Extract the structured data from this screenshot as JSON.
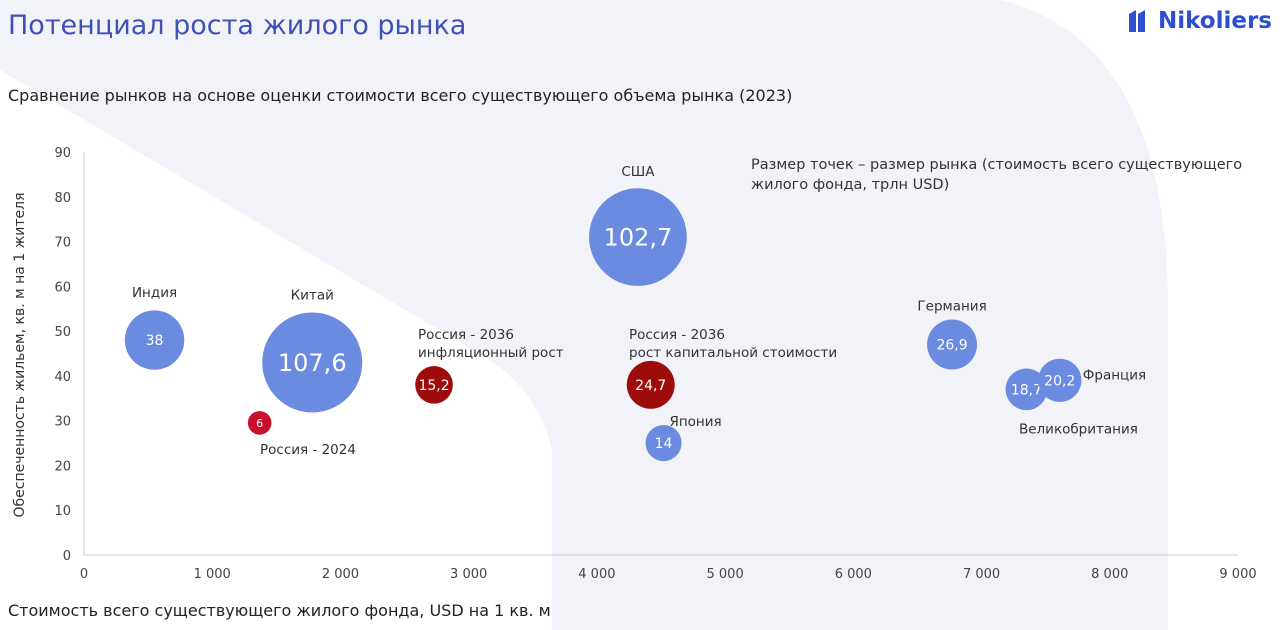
{
  "title": "Потенциал роста жилого рынка",
  "logo": {
    "text": "Nikoliers"
  },
  "subtitle": "Сравнение рынков на основе оценки стоимости всего существующего объема рынка (2023)",
  "note": "Размер точек – размер рынка (стоимость всего существующего жилого фонда, трлн USD)",
  "colors": {
    "blue": "#6B8BE0",
    "red": "#9E0B0B",
    "bright_red": "#C8102E",
    "title": "#3F51B5"
  },
  "chart_data": {
    "type": "scatter",
    "xlabel": "Стоимость всего существующего жилого фонда, USD на 1 кв. м",
    "ylabel": "Обеспеченность жильем, кв. м на 1 жителя",
    "xlim": [
      0,
      9000
    ],
    "ylim": [
      0,
      90
    ],
    "x_ticks": [
      "0",
      "1 000",
      "2 000",
      "3 000",
      "4 000",
      "5 000",
      "6 000",
      "7 000",
      "8 000",
      "9 000"
    ],
    "y_ticks": [
      "0",
      "10",
      "20",
      "30",
      "40",
      "50",
      "60",
      "70",
      "80",
      "90"
    ],
    "grid": false,
    "points": [
      {
        "label": "Индия",
        "x": 550,
        "y": 48,
        "size": 38,
        "size_label": "38",
        "color": "#6B8BE0"
      },
      {
        "label": "Китай",
        "x": 1780,
        "y": 43,
        "size": 107.6,
        "size_label": "107,6",
        "color": "#6B8BE0"
      },
      {
        "label": "Россия - 2024",
        "x": 1370,
        "y": 29.5,
        "size": 6,
        "size_label": "6",
        "color": "#C8102E"
      },
      {
        "label_lines": [
          "Россия - 2036",
          "инфляционный рост"
        ],
        "x": 2730,
        "y": 38,
        "size": 15.2,
        "size_label": "15,2",
        "color": "#9E0B0B"
      },
      {
        "label": "США",
        "x": 4320,
        "y": 71,
        "size": 102.7,
        "size_label": "102,7",
        "color": "#6B8BE0"
      },
      {
        "label_lines": [
          "Россия - 2036",
          "рост капитальной стоимости"
        ],
        "x": 4420,
        "y": 38,
        "size": 24.7,
        "size_label": "24,7",
        "color": "#9E0B0B"
      },
      {
        "label": "Япония",
        "x": 4520,
        "y": 25,
        "size": 14,
        "size_label": "14",
        "color": "#6B8BE0"
      },
      {
        "label": "Германия",
        "x": 6770,
        "y": 47,
        "size": 26.9,
        "size_label": "26,9",
        "color": "#6B8BE0"
      },
      {
        "label": "Великобритания",
        "x": 7350,
        "y": 37,
        "size": 18.7,
        "size_label": "18,7",
        "color": "#6B8BE0"
      },
      {
        "label": "Франция",
        "x": 7610,
        "y": 39,
        "size": 20.2,
        "size_label": "20,2",
        "color": "#6B8BE0"
      }
    ]
  }
}
